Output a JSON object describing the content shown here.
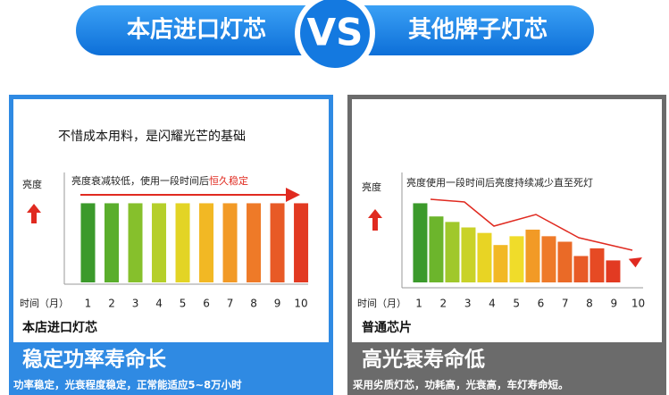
{
  "header": {
    "left": "本店进口灯芯",
    "vs": "VS",
    "right": "其他牌子灯芯"
  },
  "chart_data": [
    {
      "type": "bar",
      "title": "不惜成本用料，是闪耀光芒的基础",
      "annotation": [
        "亮度衰减较低，使用一段时间后",
        "恒久稳定"
      ],
      "y_label": "亮度",
      "x_label": "时间（月）",
      "x": [
        1,
        2,
        3,
        4,
        5,
        6,
        7,
        8,
        9,
        10
      ],
      "values": [
        72,
        72,
        72,
        72,
        72,
        72,
        72,
        72,
        72,
        72
      ],
      "colors": [
        "#3b9a2b",
        "#5aae2c",
        "#86c02c",
        "#b5cf2a",
        "#e3d425",
        "#f2b824",
        "#f29a26",
        "#ee7a28",
        "#e85a26",
        "#e23a22"
      ],
      "xlim": [
        0,
        10.3
      ],
      "xticks": [
        1,
        2,
        3,
        4,
        5,
        6,
        7,
        8,
        9,
        10
      ],
      "ylim": [
        0,
        100
      ],
      "caption": "本店进口灯芯",
      "banner": "稳定功率寿命长",
      "banner_sub": "功率稳定，光衰程度稳定，正常能适应5~8万小时"
    },
    {
      "type": "bar",
      "annotation": [
        "亮度使用一段时间后亮度持续减少直至死灯"
      ],
      "y_label": "亮度",
      "x_label": "时间（月）",
      "x": [
        1.05,
        1.71,
        2.37,
        3.03,
        3.69,
        4.35,
        5.01,
        5.67,
        6.33,
        6.99,
        7.65,
        8.31,
        8.97
      ],
      "values": [
        72,
        60,
        55,
        50,
        45,
        34,
        42,
        48,
        42,
        37,
        24,
        31,
        20
      ],
      "colors": [
        "#3b9a2b",
        "#6cb52c",
        "#a0c82b",
        "#c9d228",
        "#e8d424",
        "#f2b824",
        "#f0dc2a",
        "#f29a26",
        "#ee7a28",
        "#ea6a27",
        "#e85a26",
        "#e64a24",
        "#e23a22"
      ],
      "xlim": [
        0.3,
        10.2
      ],
      "xticks": [
        1,
        2,
        3,
        4,
        5,
        6,
        7,
        8,
        9,
        10
      ],
      "ylim": [
        0,
        100
      ],
      "caption": "普通芯片",
      "banner": "高光衰寿命低",
      "banner_sub": "采用劣质灯芯，功耗高，光衰高，车灯寿命短。"
    }
  ]
}
